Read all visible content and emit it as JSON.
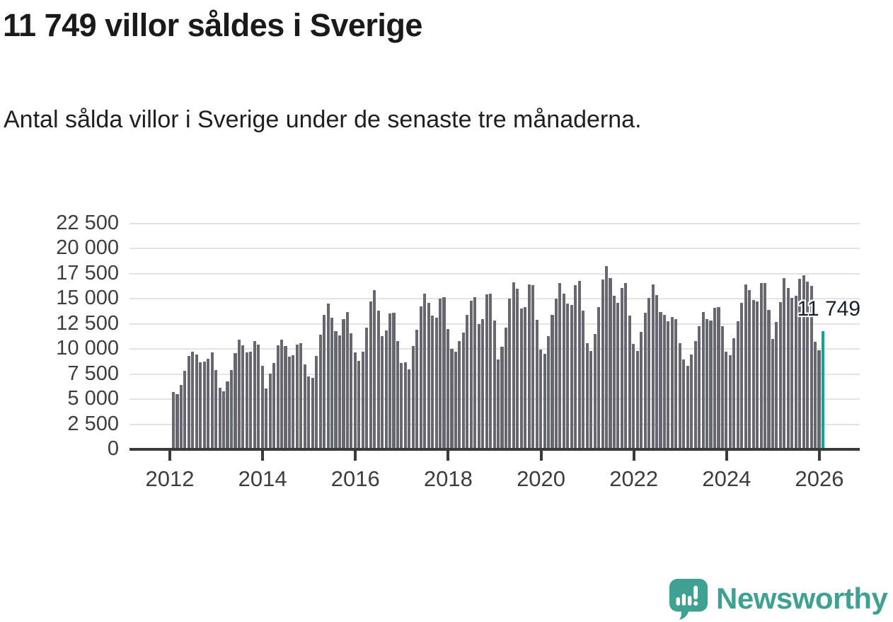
{
  "header": {
    "title": "11 749 villor såldes i Sverige",
    "subtitle": "Antal sålda villor i Sverige under de senaste tre månaderna."
  },
  "chart_data": {
    "type": "bar",
    "title": "11 749 villor såldes i Sverige",
    "subtitle": "Antal sålda villor i Sverige under de senaste tre månaderna.",
    "xlabel": "",
    "ylabel": "",
    "frequency": "monthly",
    "x_start": "2012-01",
    "x_end": "2026-01",
    "grid": "horizontal",
    "legend": "none",
    "ylim": [
      0,
      22500
    ],
    "bar_color": "#67676f",
    "axis_color": "#3a3a3a",
    "gridline_color": "#e3e3e3",
    "x_tick_labels": [
      "2012",
      "2014",
      "2016",
      "2018",
      "2020",
      "2022",
      "2024",
      "2026"
    ],
    "y_ticks": [
      0,
      2500,
      5000,
      7500,
      10000,
      12500,
      15000,
      17500,
      20000,
      22500
    ],
    "y_tick_labels": [
      "0",
      "2 500",
      "5 000",
      "7 500",
      "10 000",
      "12 500",
      "15 000",
      "17 500",
      "20 000",
      "22 500"
    ],
    "highlight": {
      "index": 168,
      "value": 11749,
      "label": "11 749",
      "color": "#11a39e"
    },
    "values": [
      5700,
      5500,
      6450,
      7850,
      9300,
      9700,
      9450,
      8650,
      8750,
      9000,
      9650,
      7900,
      6150,
      5750,
      6750,
      7900,
      9600,
      10950,
      10400,
      9650,
      9700,
      10800,
      10450,
      8350,
      6100,
      7550,
      8600,
      10350,
      10900,
      10300,
      9250,
      9350,
      10450,
      10600,
      8500,
      7250,
      7100,
      9300,
      11450,
      13400,
      14550,
      13100,
      11750,
      11350,
      12950,
      13700,
      11550,
      9650,
      8850,
      9700,
      12100,
      14750,
      15900,
      13850,
      11300,
      11850,
      13550,
      13600,
      10800,
      8600,
      8700,
      8000,
      10300,
      11900,
      14250,
      15500,
      14600,
      13350,
      13100,
      15000,
      15150,
      12000,
      10050,
      9750,
      10800,
      11650,
      13400,
      14800,
      15150,
      12500,
      12950,
      15450,
      15550,
      12850,
      8950,
      10250,
      12100,
      15050,
      16650,
      16000,
      14050,
      14200,
      16450,
      16350,
      12900,
      9950,
      9550,
      11300,
      13400,
      15000,
      16550,
      15500,
      14500,
      14400,
      16400,
      16800,
      13850,
      10600,
      9800,
      11500,
      14200,
      16900,
      18300,
      17050,
      15300,
      14600,
      16100,
      16550,
      13300,
      10500,
      9800,
      11700,
      13600,
      15100,
      16450,
      15400,
      13700,
      13400,
      12800,
      13200,
      13000,
      10600,
      8950,
      8350,
      9450,
      10800,
      12250,
      13650,
      12950,
      12850,
      14100,
      14200,
      12250,
      9700,
      9350,
      11050,
      12770,
      14570,
      16450,
      15850,
      14850,
      14710,
      16600,
      16590,
      13880,
      11000,
      12680,
      14700,
      17100,
      16100,
      15120,
      15300,
      17030,
      17330,
      16750,
      16300,
      10700,
      9900,
      11749
    ]
  },
  "footer": {
    "logo_text": "Newsworthy",
    "logo_color": "#3fa191"
  }
}
